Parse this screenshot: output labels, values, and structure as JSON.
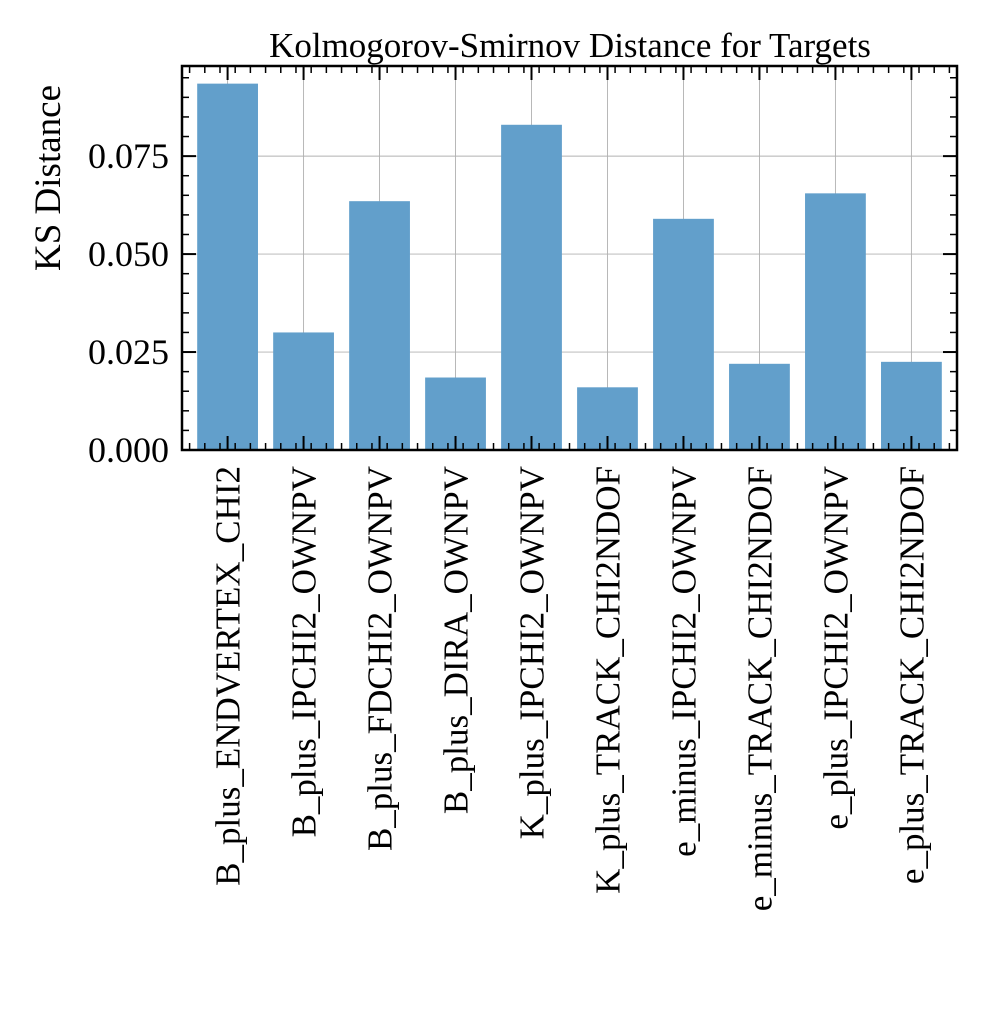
{
  "chart_data": {
    "type": "bar",
    "title": "Kolmogorov-Smirnov Distance for Targets",
    "xlabel": "",
    "ylabel": "KS Distance",
    "categories": [
      "B_plus_ENDVERTEX_CHI2",
      "B_plus_IPCHI2_OWNPV",
      "B_plus_FDCHI2_OWNPV",
      "B_plus_DIRA_OWNPV",
      "K_plus_IPCHI2_OWNPV",
      "K_plus_TRACK_CHI2NDOF",
      "e_minus_IPCHI2_OWNPV",
      "e_minus_TRACK_CHI2NDOF",
      "e_plus_IPCHI2_OWNPV",
      "e_plus_TRACK_CHI2NDOF"
    ],
    "values": [
      0.0935,
      0.03,
      0.0635,
      0.0185,
      0.083,
      0.016,
      0.059,
      0.022,
      0.0655,
      0.0225
    ],
    "ylim": [
      0,
      0.098
    ],
    "yticks": [
      0.0,
      0.025,
      0.05,
      0.075
    ],
    "ytick_labels": [
      "0.000",
      "0.025",
      "0.050",
      "0.075"
    ],
    "grid": true,
    "bar_color": "#629fcb"
  }
}
